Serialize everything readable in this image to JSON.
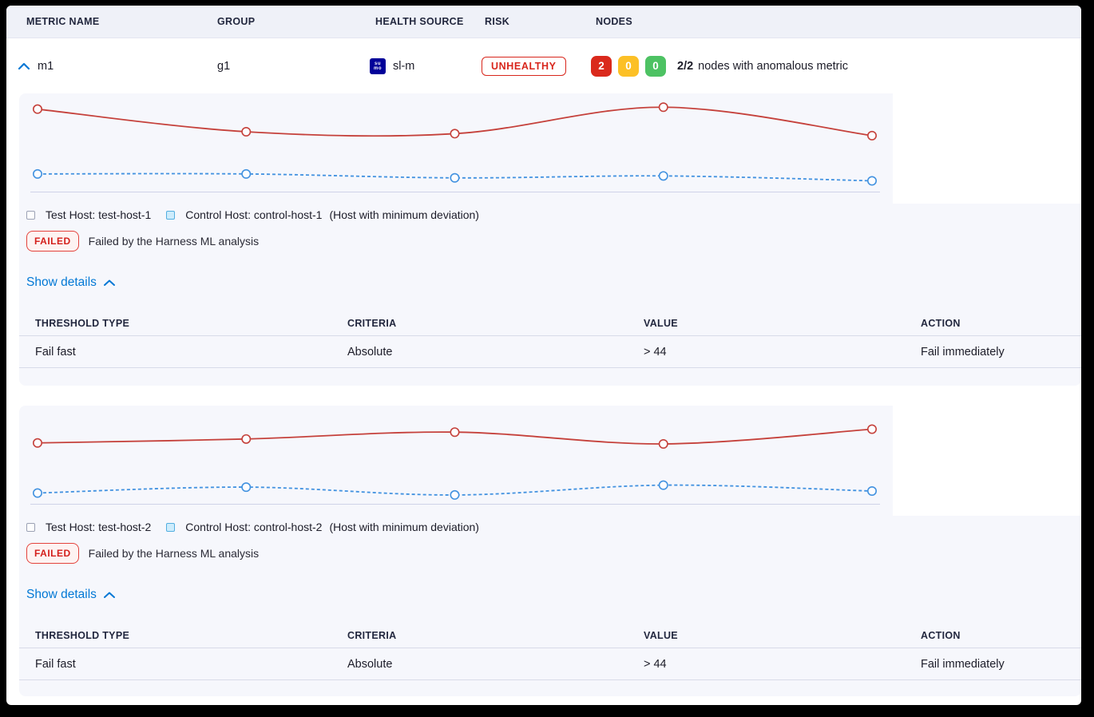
{
  "colors": {
    "accent_blue": "#0278d5",
    "risk_red": "#d8261c",
    "node_red": "#da291c",
    "node_yellow": "#fcc026",
    "node_green": "#4dc263",
    "panel_bg": "#f6f7fc",
    "test_line": "#c5413b",
    "control_line": "#4292e0"
  },
  "columns": {
    "metric_name": "METRIC NAME",
    "group": "GROUP",
    "health_source": "HEALTH SOURCE",
    "risk": "RISK",
    "nodes": "NODES"
  },
  "metric_row": {
    "metric_name": "m1",
    "group": "g1",
    "health_source_icon": "sumo-logic-logo",
    "health_source_icon_top": "su",
    "health_source_icon_bottom": "mo",
    "health_source_label": "sl-m",
    "risk_badge": "UNHEALTHY",
    "nodes": {
      "unhealthy_count": "2",
      "warning_count": "0",
      "healthy_count": "0",
      "summary_bold": "2/2",
      "summary_text": "nodes with anomalous metric"
    }
  },
  "sections": [
    {
      "legend": {
        "test_label": "Test Host: test-host-1",
        "control_label": "Control Host: control-host-1",
        "control_note": "(Host with minimum deviation)"
      },
      "status_badge": "FAILED",
      "status_message": "Failed by the Harness ML analysis",
      "details_link": "Show details",
      "threshold_table": {
        "headers": [
          "THRESHOLD TYPE",
          "CRITERIA",
          "VALUE",
          "ACTION"
        ],
        "rows": [
          [
            "Fail fast",
            "Absolute",
            "> 44",
            "Fail immediately"
          ]
        ]
      }
    },
    {
      "legend": {
        "test_label": "Test Host: test-host-2",
        "control_label": "Control Host: control-host-2",
        "control_note": "(Host with minimum deviation)"
      },
      "status_badge": "FAILED",
      "status_message": "Failed by the Harness ML analysis",
      "details_link": "Show details",
      "threshold_table": {
        "headers": [
          "THRESHOLD TYPE",
          "CRITERIA",
          "VALUE",
          "ACTION"
        ],
        "rows": [
          [
            "Fail fast",
            "Absolute",
            "> 44",
            "Fail immediately"
          ]
        ]
      }
    }
  ],
  "chart_data": [
    {
      "type": "line",
      "title": "",
      "x": [
        1,
        2,
        3,
        4,
        5
      ],
      "xlabel": "",
      "ylabel": "",
      "ylim": [
        0,
        100
      ],
      "grid": false,
      "axis_tick_labels_visible": false,
      "legend_position": "below",
      "series": [
        {
          "name": "Test Host: test-host-1",
          "color": "#c5413b",
          "line_style": "solid",
          "marker": "open-circle",
          "values": [
            84,
            61,
            59,
            86,
            57
          ]
        },
        {
          "name": "Control Host: control-host-1",
          "color": "#4292e0",
          "line_style": "dashed",
          "marker": "open-circle",
          "values": [
            18,
            18,
            14,
            16,
            11
          ]
        }
      ]
    },
    {
      "type": "line",
      "title": "",
      "x": [
        1,
        2,
        3,
        4,
        5
      ],
      "xlabel": "",
      "ylabel": "",
      "ylim": [
        0,
        100
      ],
      "grid": false,
      "axis_tick_labels_visible": false,
      "legend_position": "below",
      "series": [
        {
          "name": "Test Host: test-host-2",
          "color": "#c5413b",
          "line_style": "solid",
          "marker": "open-circle",
          "values": [
            62,
            66,
            73,
            61,
            76
          ]
        },
        {
          "name": "Control Host: control-host-2",
          "color": "#4292e0",
          "line_style": "dashed",
          "marker": "open-circle",
          "values": [
            11,
            17,
            9,
            19,
            13
          ]
        }
      ]
    }
  ]
}
